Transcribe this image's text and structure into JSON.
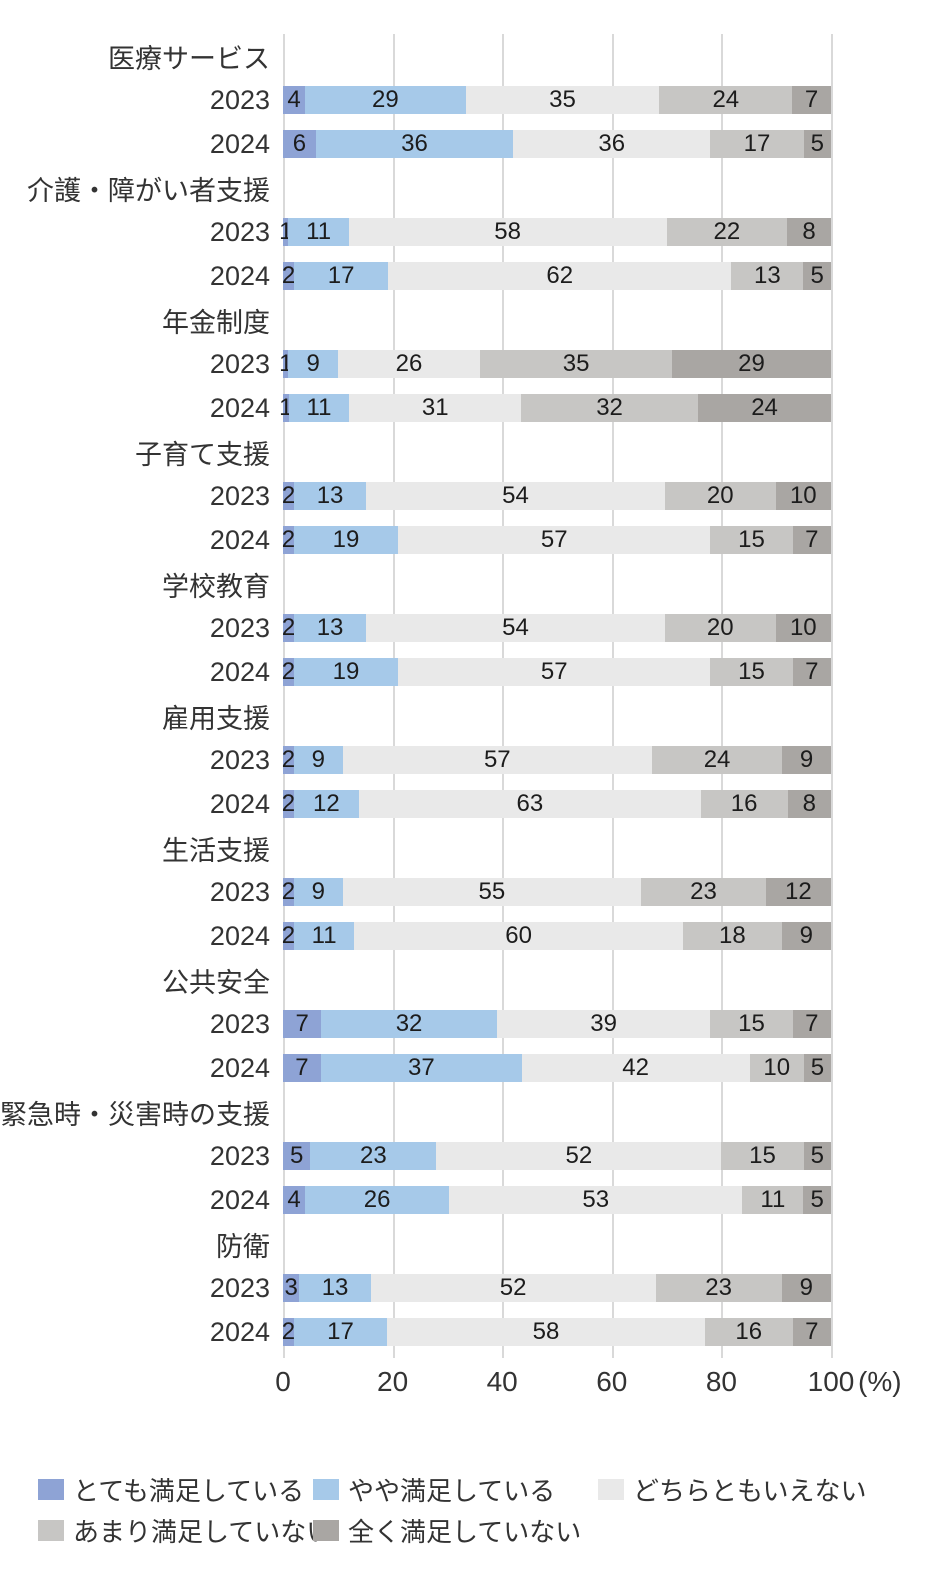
{
  "chart_data": {
    "type": "bar",
    "orientation": "horizontal-stacked",
    "title": "",
    "unit_label": "(%)",
    "x_ticks": [
      0,
      20,
      40,
      60,
      80,
      100
    ],
    "xlim": [
      0,
      100
    ],
    "grid": "vertical-only",
    "legend_position": "bottom",
    "series_names": [
      "とても満足している",
      "やや満足している",
      "どちらともいえない",
      "あまり満足していない",
      "全く満足していない"
    ],
    "series_colors": [
      "#8EA3D5",
      "#A6C9E9",
      "#E9E9E9",
      "#C7C6C4",
      "#A9A6A3"
    ],
    "groups": [
      {
        "category": "医療サービス",
        "rows": [
          {
            "year": "2023",
            "values": [
              4,
              29,
              35,
              24,
              7
            ]
          },
          {
            "year": "2024",
            "values": [
              6,
              36,
              36,
              17,
              5
            ]
          }
        ]
      },
      {
        "category": "介護・障がい者支援",
        "rows": [
          {
            "year": "2023",
            "values": [
              1,
              11,
              58,
              22,
              8
            ]
          },
          {
            "year": "2024",
            "values": [
              2,
              17,
              62,
              13,
              5
            ]
          }
        ]
      },
      {
        "category": "年金制度",
        "rows": [
          {
            "year": "2023",
            "values": [
              1,
              9,
              26,
              35,
              29
            ]
          },
          {
            "year": "2024",
            "values": [
              1,
              11,
              31,
              32,
              24
            ]
          }
        ]
      },
      {
        "category": "子育て支援",
        "rows": [
          {
            "year": "2023",
            "values": [
              2,
              13,
              54,
              20,
              10
            ]
          },
          {
            "year": "2024",
            "values": [
              2,
              19,
              57,
              15,
              7
            ]
          }
        ]
      },
      {
        "category": "学校教育",
        "rows": [
          {
            "year": "2023",
            "values": [
              2,
              13,
              54,
              20,
              10
            ]
          },
          {
            "year": "2024",
            "values": [
              2,
              19,
              57,
              15,
              7
            ]
          }
        ]
      },
      {
        "category": "雇用支援",
        "rows": [
          {
            "year": "2023",
            "values": [
              2,
              9,
              57,
              24,
              9
            ]
          },
          {
            "year": "2024",
            "values": [
              2,
              12,
              63,
              16,
              8
            ]
          }
        ]
      },
      {
        "category": "生活支援",
        "rows": [
          {
            "year": "2023",
            "values": [
              2,
              9,
              55,
              23,
              12
            ]
          },
          {
            "year": "2024",
            "values": [
              2,
              11,
              60,
              18,
              9
            ]
          }
        ]
      },
      {
        "category": "公共安全",
        "rows": [
          {
            "year": "2023",
            "values": [
              7,
              32,
              39,
              15,
              7
            ]
          },
          {
            "year": "2024",
            "values": [
              7,
              37,
              42,
              10,
              5
            ]
          }
        ]
      },
      {
        "category": "緊急時・災害時の支援",
        "rows": [
          {
            "year": "2023",
            "values": [
              5,
              23,
              52,
              15,
              5
            ]
          },
          {
            "year": "2024",
            "values": [
              4,
              26,
              53,
              11,
              5
            ]
          }
        ]
      },
      {
        "category": "防衛",
        "rows": [
          {
            "year": "2023",
            "values": [
              3,
              13,
              52,
              23,
              9
            ]
          },
          {
            "year": "2024",
            "values": [
              2,
              17,
              58,
              16,
              7
            ]
          }
        ]
      }
    ]
  },
  "legend": {
    "items": [
      {
        "label": "とても満足している",
        "color": "#8EA3D5"
      },
      {
        "label": "やや満足している",
        "color": "#A6C9E9"
      },
      {
        "label": "どちらともいえない",
        "color": "#E9E9E9"
      },
      {
        "label": "あまり満足していない",
        "color": "#C7C6C4"
      },
      {
        "label": "全く満足していない",
        "color": "#A9A6A3"
      }
    ]
  },
  "colors": {
    "gridline": "#d9d9d9",
    "text": "#333333",
    "bar_label": "#1c1c1c"
  }
}
